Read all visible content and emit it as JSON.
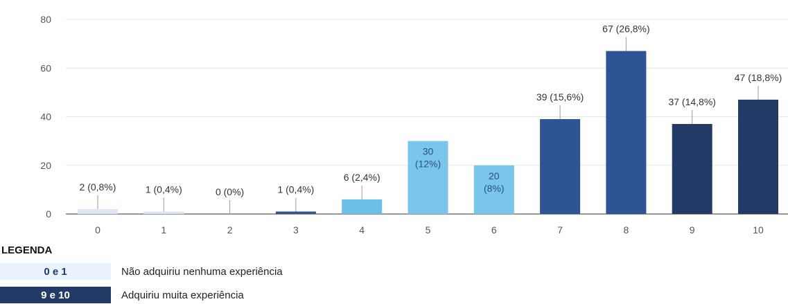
{
  "chart_data": {
    "type": "bar",
    "categories": [
      "0",
      "1",
      "2",
      "3",
      "4",
      "5",
      "6",
      "7",
      "8",
      "9",
      "10"
    ],
    "values": [
      2,
      1,
      0,
      1,
      6,
      30,
      20,
      39,
      67,
      37,
      47
    ],
    "data_labels": [
      "2 (0,8%)",
      "1 (0,4%)",
      "0 (0%)",
      "1 (0,4%)",
      "6 (2,4%)",
      "30\n(12%)",
      "20\n(8%)",
      "39 (15,6%)",
      "67 (26,8%)",
      "37 (14,8%)",
      "47 (18,8%)"
    ],
    "bar_colors": [
      "#dce6f4",
      "#dce6f4",
      "#dce6f4",
      "#2f5496",
      "#6cbfe8",
      "#79c6ea",
      "#79c6ea",
      "#2f5496",
      "#2f5496",
      "#243a66",
      "#243a66"
    ],
    "yticks": [
      0,
      20,
      40,
      60,
      80
    ],
    "ylim": [
      0,
      80
    ],
    "grid": true,
    "title": "",
    "xlabel": "",
    "ylabel": ""
  },
  "legend": {
    "title": "LEGENDA",
    "items": [
      {
        "swatch_label": "0 e 1",
        "description": "Não adquiriu nenhuma experiência",
        "bg": "#eaf3fb",
        "fg": "#1f3a6a"
      },
      {
        "swatch_label": "9 e 10",
        "description": "Adquiriu muita experiência",
        "bg": "#243a66",
        "fg": "#ffffff"
      }
    ]
  }
}
